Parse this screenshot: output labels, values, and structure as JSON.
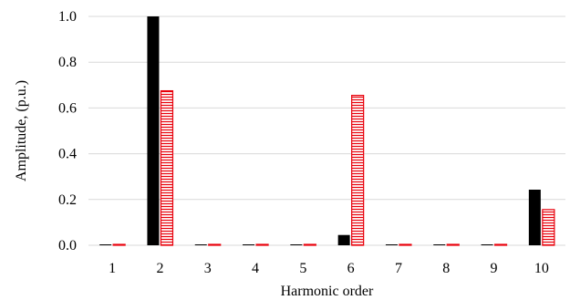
{
  "chart_data": {
    "type": "bar",
    "title": "",
    "xlabel": "Harmonic order",
    "ylabel": "Amplitude, (p.u.)",
    "categories": [
      "1",
      "2",
      "3",
      "4",
      "5",
      "6",
      "7",
      "8",
      "9",
      "10"
    ],
    "ylim": [
      0,
      1.0
    ],
    "yticks": [
      "0.0",
      "0.2",
      "0.4",
      "0.6",
      "0.8",
      "1.0"
    ],
    "grid": true,
    "series": [
      {
        "values": [
          0.0,
          1.0,
          0.0,
          0.0,
          0.0,
          0.045,
          0.0,
          0.0,
          0.0,
          0.243
        ],
        "color": "#000000",
        "pattern": "solid"
      },
      {
        "values": [
          0.0,
          0.675,
          0.0,
          0.0,
          0.0,
          0.655,
          0.0,
          0.0,
          0.0,
          0.156
        ],
        "color": "#e8000b",
        "pattern": "horizontal-hatch"
      }
    ]
  }
}
